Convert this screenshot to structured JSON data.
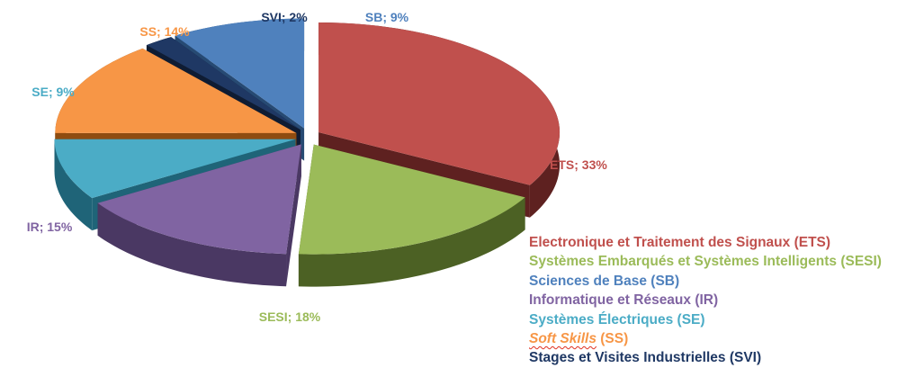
{
  "chart_data": {
    "type": "pie",
    "style": "3d-exploded",
    "slices": [
      {
        "label": "ETS; 33%",
        "category": "ETS",
        "value": 33,
        "color": "#c0504d",
        "side_color": "#5e2120"
      },
      {
        "label": "SESI; 18%",
        "category": "SESI",
        "value": 18,
        "color": "#9bbb59",
        "side_color": "#4c6124"
      },
      {
        "label": "IR; 15%",
        "category": "IR",
        "value": 15,
        "color": "#8064a2",
        "side_color": "#4a3863"
      },
      {
        "label": "SE; 9%",
        "category": "SE",
        "value": 9,
        "color": "#4bacc6",
        "side_color": "#1f6478"
      },
      {
        "label": "SS; 14%",
        "category": "SS",
        "value": 14,
        "color": "#f79646",
        "side_color": "#8f4c10"
      },
      {
        "label": "SVI; 2%",
        "category": "SVI",
        "value": 2,
        "color": "#1f3864",
        "side_color": "#0f1c33"
      },
      {
        "label": "SB; 9%",
        "category": "SB",
        "value": 9,
        "color": "#4f81bd",
        "side_color": "#274a73"
      }
    ],
    "legend": {
      "placement": "bottom-right",
      "items": [
        {
          "text": "Electronique et Traitement des Signaux (ETS)",
          "color": "#c0504d"
        },
        {
          "text": "Systèmes Embarqués et Systèmes Intelligents (SESI)",
          "color": "#9bbb59"
        },
        {
          "text": "Sciences de Base (SB)",
          "color": "#4f81bd"
        },
        {
          "text": "Informatique et Réseaux (IR)",
          "color": "#8064a2"
        },
        {
          "text": "Systèmes Électriques (SE)",
          "color": "#4bacc6"
        },
        {
          "soft": "Soft Skills",
          "text": " (SS)",
          "color": "#f79646"
        },
        {
          "text": "Stages et Visites Industrielles (SVI)",
          "color": "#1f3864"
        }
      ]
    }
  }
}
